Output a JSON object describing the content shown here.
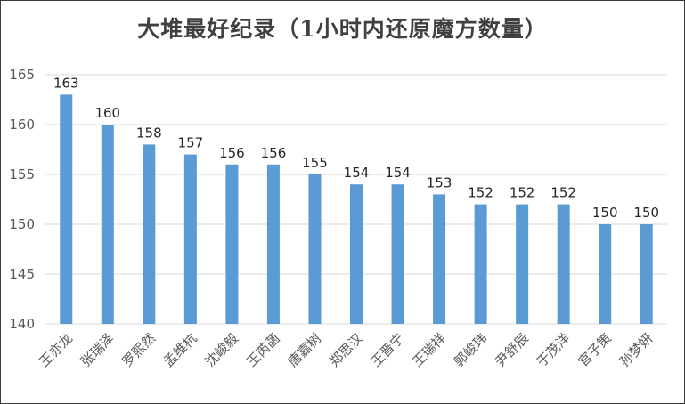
{
  "chart_data": {
    "type": "bar",
    "title": "大堆最好纪录（1小时内还原魔方数量）",
    "categories": [
      "王亦龙",
      "张瑞泽",
      "罗熙然",
      "孟维杭",
      "沈峻毅",
      "王芮菡",
      "唐嘉树",
      "郑思汉",
      "王晋宁",
      "王瑞祥",
      "郭峻玮",
      "尹舒辰",
      "于茂洋",
      "官子策",
      "孙梦妍"
    ],
    "values": [
      163,
      160,
      158,
      157,
      156,
      156,
      155,
      154,
      154,
      153,
      152,
      152,
      152,
      150,
      150
    ],
    "yticks": [
      140,
      145,
      150,
      155,
      160,
      165
    ],
    "ylim": [
      140,
      165
    ],
    "xlabel": "",
    "ylabel": "",
    "grid": true,
    "data_labels": true,
    "bar_color": "#5B9BD5",
    "grid_color": "#D9D9D9"
  }
}
